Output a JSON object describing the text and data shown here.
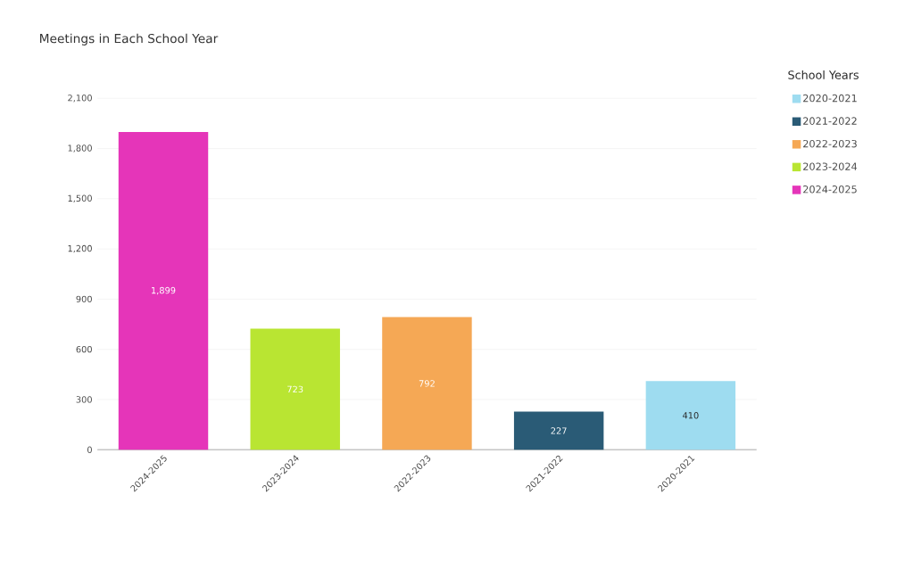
{
  "chart_data": {
    "type": "bar",
    "title": "Meetings in Each School Year",
    "legend_title": "School Years",
    "categories": [
      "2024-2025",
      "2023-2024",
      "2022-2023",
      "2021-2022",
      "2020-2021"
    ],
    "series": [
      {
        "name": "2020-2021",
        "color": "#9edcf0",
        "values": [
          null,
          null,
          null,
          null,
          410
        ],
        "value_labels": [
          null,
          null,
          null,
          null,
          "410"
        ]
      },
      {
        "name": "2021-2022",
        "color": "#2a5b76",
        "values": [
          null,
          null,
          null,
          227,
          null
        ],
        "value_labels": [
          null,
          null,
          null,
          "227",
          null
        ]
      },
      {
        "name": "2022-2023",
        "color": "#f5a855",
        "values": [
          null,
          null,
          792,
          null,
          null
        ],
        "value_labels": [
          null,
          null,
          "792",
          null,
          null
        ]
      },
      {
        "name": "2023-2024",
        "color": "#b9e532",
        "values": [
          null,
          723,
          null,
          null,
          null
        ],
        "value_labels": [
          null,
          "723",
          null,
          null,
          null
        ]
      },
      {
        "name": "2024-2025",
        "color": "#e535b9",
        "values": [
          1899,
          null,
          null,
          null,
          null
        ],
        "value_labels": [
          "1,899",
          null,
          null,
          null,
          null
        ]
      }
    ],
    "ylim": [
      0,
      2100
    ],
    "yticks": [
      {
        "value": 0,
        "label": "0"
      },
      {
        "value": 300,
        "label": "300"
      },
      {
        "value": 600,
        "label": "600"
      },
      {
        "value": 900,
        "label": "900"
      },
      {
        "value": 1200,
        "label": "1,200"
      },
      {
        "value": 1500,
        "label": "1,500"
      },
      {
        "value": 1800,
        "label": "1,800"
      },
      {
        "value": 2100,
        "label": "2,100"
      }
    ],
    "grid": "y",
    "legend": "right"
  }
}
